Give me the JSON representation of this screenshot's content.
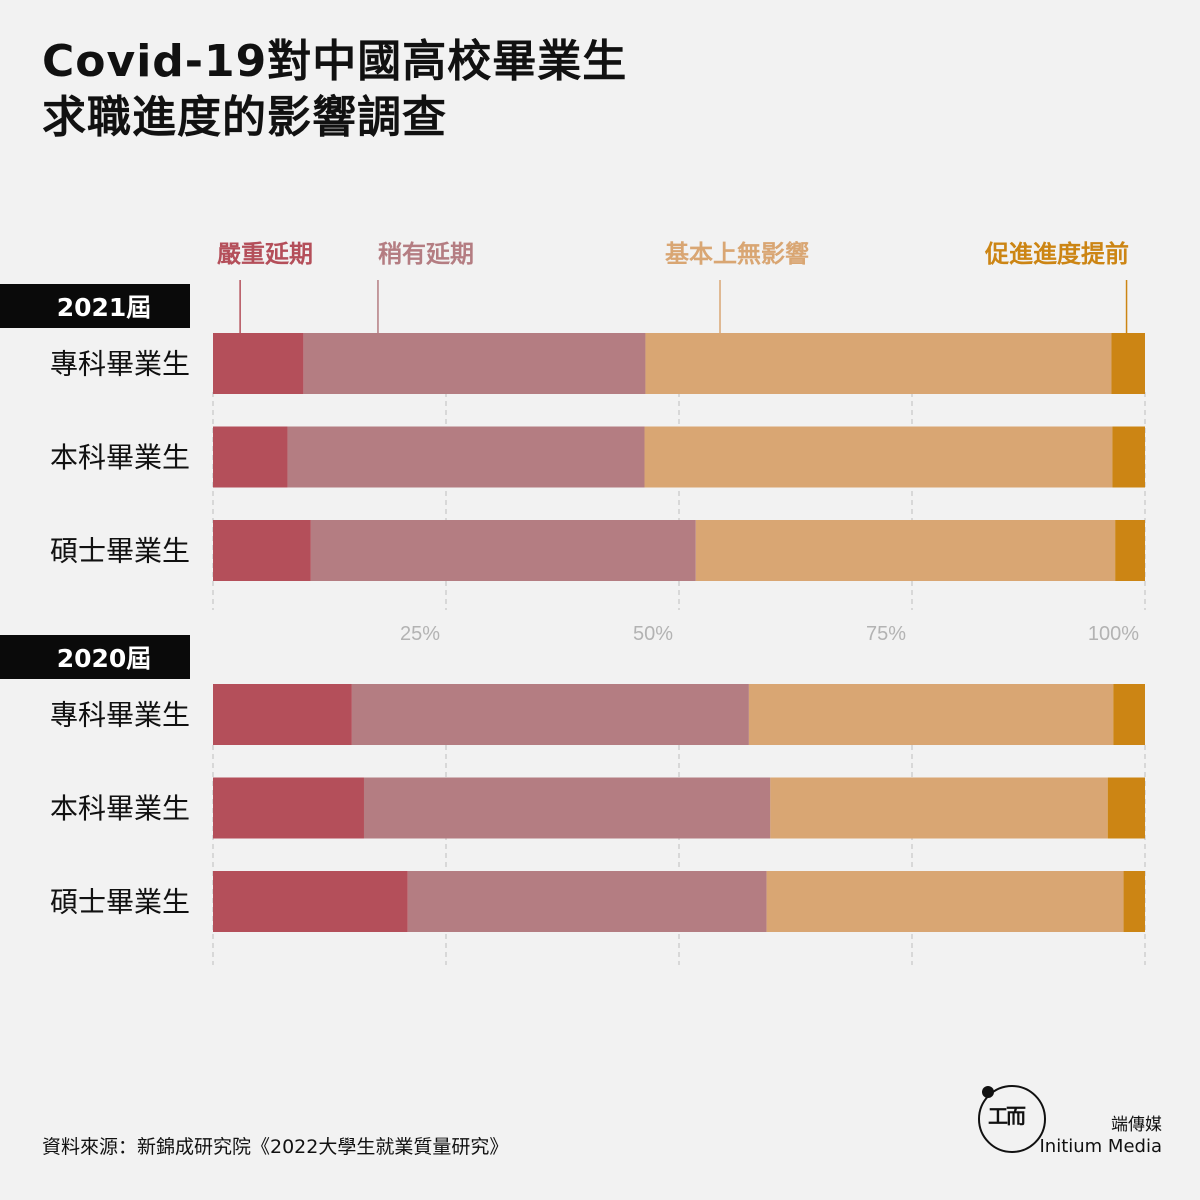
{
  "header": {
    "title_line1": "Covid-19對中國高校畢業生",
    "title_line2": "求職進度的影響調查"
  },
  "chart_data": {
    "type": "bar",
    "orientation": "horizontal",
    "stacked": true,
    "legend": [
      {
        "name": "嚴重延期",
        "color": "#b44f5a"
      },
      {
        "name": "稍有延期",
        "color": "#b47d82"
      },
      {
        "name": "基本上無影響",
        "color": "#d9a673"
      },
      {
        "name": "促進進度提前",
        "color": "#cc8514"
      }
    ],
    "x_ticks": [
      "25%",
      "50%",
      "75%",
      "100%"
    ],
    "xlim": [
      0,
      100
    ],
    "grid": true,
    "groups": [
      {
        "label": "2021屆",
        "rows": [
          {
            "label": "專科畢業生",
            "values": [
              9.7,
              36.7,
              50.0,
              3.6
            ]
          },
          {
            "label": "本科畢業生",
            "values": [
              8.0,
              38.3,
              50.2,
              3.5
            ]
          },
          {
            "label": "碩士畢業生",
            "values": [
              10.5,
              41.3,
              45.0,
              3.2
            ]
          }
        ]
      },
      {
        "label": "2020屆",
        "rows": [
          {
            "label": "專科畢業生",
            "values": [
              14.9,
              42.6,
              39.1,
              3.4
            ]
          },
          {
            "label": "本科畢業生",
            "values": [
              16.2,
              43.6,
              36.2,
              4.0
            ]
          },
          {
            "label": "碩士畢業生",
            "values": [
              20.9,
              38.5,
              38.3,
              2.3
            ]
          }
        ]
      }
    ]
  },
  "footer": {
    "source": "資料來源：新錦成研究院《2022大學生就業質量研究》",
    "brand_zh": "端傳媒",
    "brand_en": "Initium Media",
    "logo_mark": "工而"
  }
}
